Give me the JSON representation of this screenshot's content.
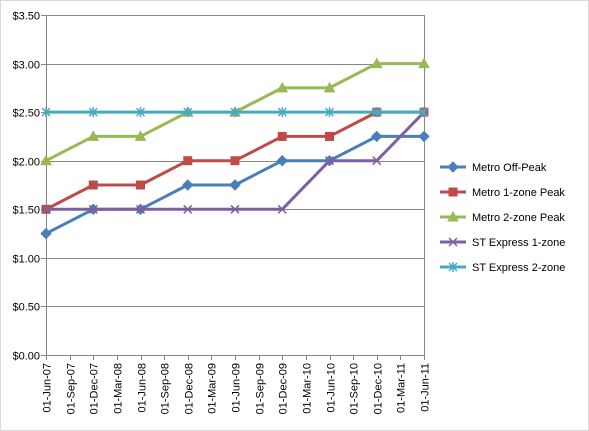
{
  "chart_data": {
    "type": "line",
    "title": "",
    "xlabel": "",
    "ylabel": "",
    "x": [
      "01-Jun-07",
      "01-Sep-07",
      "01-Dec-07",
      "01-Mar-08",
      "01-Jun-08",
      "01-Sep-08",
      "01-Dec-08",
      "01-Mar-09",
      "01-Jun-09",
      "01-Sep-09",
      "01-Dec-09",
      "01-Mar-10",
      "01-Jun-10",
      "01-Sep-10",
      "01-Dec-10",
      "01-Mar-11",
      "01-Jun-11"
    ],
    "ylim": [
      0,
      3.5
    ],
    "yticks": [
      "$0.00",
      "$0.50",
      "$1.00",
      "$1.50",
      "$2.00",
      "$2.50",
      "$3.00",
      "$3.50"
    ],
    "grid": true,
    "legend_position": "right",
    "series": [
      {
        "name": "Metro Off-Peak",
        "color": "#4a7ebb",
        "marker": "diamond",
        "points": [
          [
            "01-Jun-07",
            1.25
          ],
          [
            "01-Dec-07",
            1.5
          ],
          [
            "01-Jun-08",
            1.5
          ],
          [
            "01-Dec-08",
            1.75
          ],
          [
            "01-Jun-09",
            1.75
          ],
          [
            "01-Dec-09",
            2.0
          ],
          [
            "01-Jun-10",
            2.0
          ],
          [
            "01-Dec-10",
            2.25
          ],
          [
            "01-Jun-11",
            2.25
          ]
        ]
      },
      {
        "name": "Metro 1-zone Peak",
        "color": "#be4b48",
        "marker": "square",
        "points": [
          [
            "01-Jun-07",
            1.5
          ],
          [
            "01-Dec-07",
            1.75
          ],
          [
            "01-Jun-08",
            1.75
          ],
          [
            "01-Dec-08",
            2.0
          ],
          [
            "01-Jun-09",
            2.0
          ],
          [
            "01-Dec-09",
            2.25
          ],
          [
            "01-Jun-10",
            2.25
          ],
          [
            "01-Dec-10",
            2.5
          ],
          [
            "01-Jun-11",
            2.5
          ]
        ]
      },
      {
        "name": "Metro 2-zone Peak",
        "color": "#98b954",
        "marker": "triangle",
        "points": [
          [
            "01-Jun-07",
            2.0
          ],
          [
            "01-Dec-07",
            2.25
          ],
          [
            "01-Jun-08",
            2.25
          ],
          [
            "01-Dec-08",
            2.5
          ],
          [
            "01-Jun-09",
            2.5
          ],
          [
            "01-Dec-09",
            2.75
          ],
          [
            "01-Jun-10",
            2.75
          ],
          [
            "01-Dec-10",
            3.0
          ],
          [
            "01-Jun-11",
            3.0
          ]
        ]
      },
      {
        "name": "ST Express 1-zone",
        "color": "#7d60a0",
        "marker": "x",
        "points": [
          [
            "01-Jun-07",
            1.5
          ],
          [
            "01-Dec-07",
            1.5
          ],
          [
            "01-Jun-08",
            1.5
          ],
          [
            "01-Dec-08",
            1.5
          ],
          [
            "01-Jun-09",
            1.5
          ],
          [
            "01-Dec-09",
            1.5
          ],
          [
            "01-Jun-10",
            2.0
          ],
          [
            "01-Dec-10",
            2.0
          ],
          [
            "01-Jun-11",
            2.5
          ]
        ]
      },
      {
        "name": "ST Express 2-zone",
        "color": "#46aac5",
        "marker": "star",
        "points": [
          [
            "01-Jun-07",
            2.5
          ],
          [
            "01-Dec-07",
            2.5
          ],
          [
            "01-Jun-08",
            2.5
          ],
          [
            "01-Dec-08",
            2.5
          ],
          [
            "01-Jun-09",
            2.5
          ],
          [
            "01-Dec-09",
            2.5
          ],
          [
            "01-Jun-10",
            2.5
          ],
          [
            "01-Dec-10",
            2.5
          ],
          [
            "01-Jun-11",
            2.5
          ]
        ]
      }
    ]
  }
}
